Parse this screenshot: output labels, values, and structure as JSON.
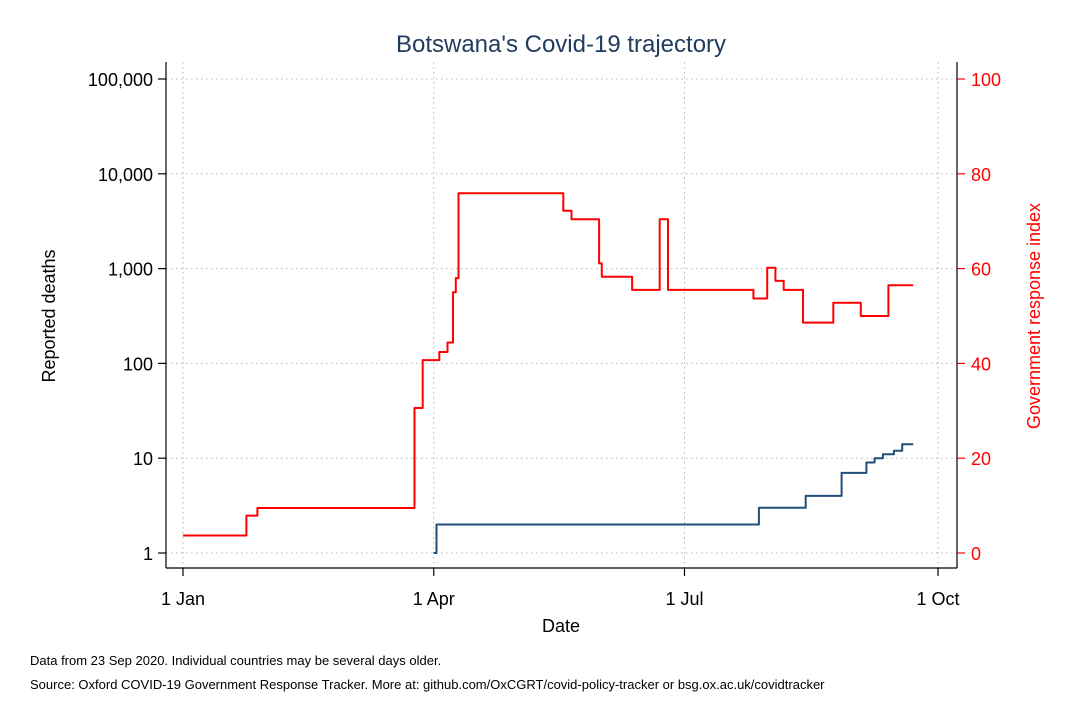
{
  "chart_data": {
    "type": "line",
    "title": "Botswana's Covid-19 trajectory",
    "xlabel": "Date",
    "ylabel_left": "Reported deaths",
    "ylabel_right": "Government response index",
    "x_ticks": [
      {
        "label": "1 Jan",
        "date": "2020-01-01"
      },
      {
        "label": "1 Apr",
        "date": "2020-04-01"
      },
      {
        "label": "1 Jul",
        "date": "2020-07-01"
      },
      {
        "label": "1 Oct",
        "date": "2020-10-01"
      }
    ],
    "x_range": [
      "2020-01-01",
      "2020-10-01"
    ],
    "y_left": {
      "scale": "log",
      "range": [
        1,
        100000
      ],
      "ticks": [
        {
          "value": 1,
          "label": "1"
        },
        {
          "value": 10,
          "label": "10"
        },
        {
          "value": 100,
          "label": "100"
        },
        {
          "value": 1000,
          "label": "1,000"
        },
        {
          "value": 10000,
          "label": "10,000"
        },
        {
          "value": 100000,
          "label": "100,000"
        }
      ]
    },
    "y_right": {
      "scale": "linear",
      "range": [
        0,
        100
      ],
      "ticks": [
        {
          "value": 0,
          "label": "0"
        },
        {
          "value": 20,
          "label": "20"
        },
        {
          "value": 40,
          "label": "40"
        },
        {
          "value": 60,
          "label": "60"
        },
        {
          "value": 80,
          "label": "80"
        },
        {
          "value": 100,
          "label": "100"
        }
      ]
    },
    "grid": true,
    "colors": {
      "deaths": "#1f4e79",
      "response": "#ff0000",
      "right_axis": "#ff0000",
      "title": "#1f3b5e"
    },
    "series": [
      {
        "axis": "right",
        "kind": "step",
        "points": [
          [
            "2020-01-01",
            3.7
          ],
          [
            "2020-01-24",
            7.9
          ],
          [
            "2020-01-28",
            9.5
          ],
          [
            "2020-03-25",
            30.6
          ],
          [
            "2020-03-28",
            40.7
          ],
          [
            "2020-04-03",
            42.4
          ],
          [
            "2020-04-06",
            44.4
          ],
          [
            "2020-04-08",
            55.0
          ],
          [
            "2020-04-09",
            58.0
          ],
          [
            "2020-04-10",
            75.9
          ],
          [
            "2020-05-18",
            72.2
          ],
          [
            "2020-05-21",
            70.4
          ],
          [
            "2020-05-31",
            61.1
          ],
          [
            "2020-06-01",
            58.3
          ],
          [
            "2020-06-12",
            55.5
          ],
          [
            "2020-06-22",
            70.4
          ],
          [
            "2020-06-25",
            55.5
          ],
          [
            "2020-07-26",
            53.7
          ],
          [
            "2020-07-31",
            60.2
          ],
          [
            "2020-08-03",
            57.4
          ],
          [
            "2020-08-06",
            55.5
          ],
          [
            "2020-08-13",
            48.6
          ],
          [
            "2020-08-24",
            52.8
          ],
          [
            "2020-09-03",
            50.0
          ],
          [
            "2020-09-13",
            56.5
          ],
          [
            "2020-09-22",
            56.5
          ]
        ]
      },
      {
        "axis": "left",
        "kind": "step",
        "points": [
          [
            "2020-04-01",
            1
          ],
          [
            "2020-04-02",
            2
          ],
          [
            "2020-07-28",
            3
          ],
          [
            "2020-08-14",
            4
          ],
          [
            "2020-08-27",
            7
          ],
          [
            "2020-09-05",
            9
          ],
          [
            "2020-09-08",
            10
          ],
          [
            "2020-09-11",
            11
          ],
          [
            "2020-09-15",
            12
          ],
          [
            "2020-09-18",
            14
          ],
          [
            "2020-09-22",
            14
          ]
        ]
      }
    ]
  },
  "notes": {
    "line1": "Data from 23 Sep 2020. Individual countries may be several days older.",
    "line2": "Source: Oxford COVID-19 Government Response Tracker. More at: github.com/OxCGRT/covid-policy-tracker or bsg.ox.ac.uk/covidtracker"
  }
}
